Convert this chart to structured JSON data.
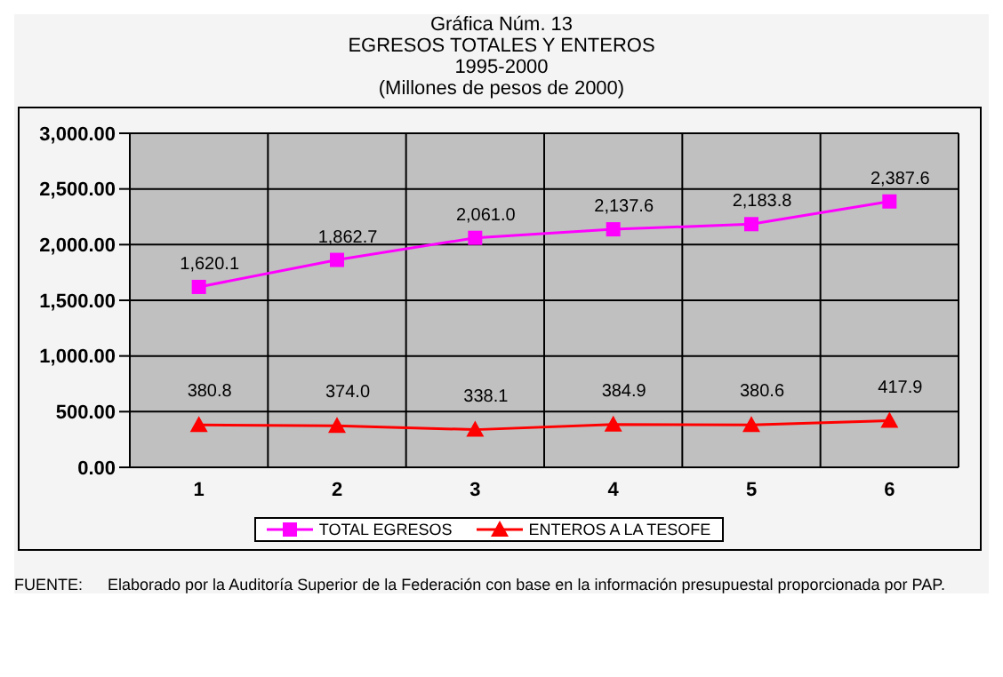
{
  "chart_data": {
    "type": "line",
    "title": "Gráfica Núm. 13",
    "subtitle": "EGRESOS TOTALES Y ENTEROS\n1995-2000\n(Millones de pesos de 2000)",
    "categories": [
      "1",
      "2",
      "3",
      "4",
      "5",
      "6"
    ],
    "series": [
      {
        "name": "TOTAL EGRESOS",
        "color": "#ff00ff",
        "marker": "square",
        "values": [
          1620.1,
          1862.7,
          2061.0,
          2137.6,
          2183.8,
          2387.6
        ],
        "value_labels": [
          "1,620.1",
          "1,862.7",
          "2,061.0",
          "2,137.6",
          "2,183.8",
          "2,387.6"
        ]
      },
      {
        "name": "ENTEROS A LA TESOFE",
        "color": "#ff0000",
        "marker": "triangle",
        "values": [
          380.8,
          374.0,
          338.1,
          384.9,
          380.6,
          417.9
        ],
        "value_labels": [
          "380.8",
          "374.0",
          "338.1",
          "384.9",
          "380.6",
          "417.9"
        ]
      }
    ],
    "ylim": [
      0,
      3000
    ],
    "yticks": [
      {
        "value": 0,
        "label": "0.00"
      },
      {
        "value": 500,
        "label": "500.00"
      },
      {
        "value": 1000,
        "label": "1,000.00"
      },
      {
        "value": 1500,
        "label": "1,500.00"
      },
      {
        "value": 2000,
        "label": "2,000.00"
      },
      {
        "value": 2500,
        "label": "2,500.00"
      },
      {
        "value": 3000,
        "label": "3,000.00"
      }
    ],
    "grid": true,
    "legend": "bottom",
    "annotations": [
      "FUENTE:\tElaborado por la Auditoría Superior de la Federación con base en la información presupuestal proporcionada por PAP."
    ]
  }
}
